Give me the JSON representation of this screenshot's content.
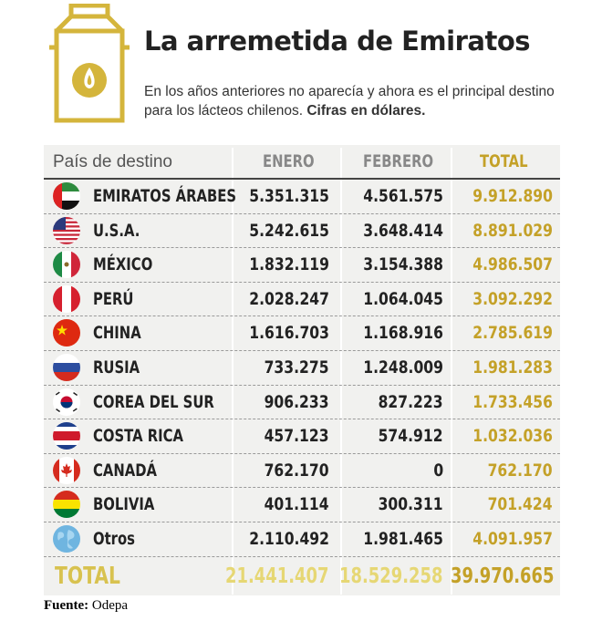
{
  "header": {
    "title": "La arremetida de Emiratos",
    "subtitle": "En los años anteriores no aparecía y ahora es el principal destino para los lácteos chilenos.",
    "subtitle_bold": "Cifras en dólares."
  },
  "table": {
    "col_country": "País de destino",
    "col_enero": "ENERO",
    "col_febrero": "FEBRERO",
    "col_total": "TOTAL"
  },
  "rows": [
    {
      "country": "EMIRATOS ÁRABES",
      "enero": "5.351.315",
      "febrero": "4.561.575",
      "total": "9.912.890",
      "flag_icon": "uae-flag-icon"
    },
    {
      "country": "U.S.A.",
      "enero": "5.242.615",
      "febrero": "3.648.414",
      "total": "8.891.029",
      "flag_icon": "usa-flag-icon"
    },
    {
      "country": "MÉXICO",
      "enero": "1.832.119",
      "febrero": "3.154.388",
      "total": "4.986.507",
      "flag_icon": "mexico-flag-icon"
    },
    {
      "country": "PERÚ",
      "enero": "2.028.247",
      "febrero": "1.064.045",
      "total": "3.092.292",
      "flag_icon": "peru-flag-icon"
    },
    {
      "country": "CHINA",
      "enero": "1.616.703",
      "febrero": "1.168.916",
      "total": "2.785.619",
      "flag_icon": "china-flag-icon"
    },
    {
      "country": "RUSIA",
      "enero": "733.275",
      "febrero": "1.248.009",
      "total": "1.981.283",
      "flag_icon": "russia-flag-icon"
    },
    {
      "country": "COREA DEL SUR",
      "enero": "906.233",
      "febrero": "827.223",
      "total": "1.733.456",
      "flag_icon": "south-korea-flag-icon"
    },
    {
      "country": "COSTA RICA",
      "enero": "457.123",
      "febrero": "574.912",
      "total": "1.032.036",
      "flag_icon": "costa-rica-flag-icon"
    },
    {
      "country": "CANADÁ",
      "enero": "762.170",
      "febrero": "0",
      "total": "762.170",
      "flag_icon": "canada-flag-icon"
    },
    {
      "country": "BOLIVIA",
      "enero": "401.114",
      "febrero": "300.311",
      "total": "701.424",
      "flag_icon": "bolivia-flag-icon"
    },
    {
      "country": "Otros",
      "enero": "2.110.492",
      "febrero": "1.981.465",
      "total": "4.091.957",
      "flag_icon": "globe-icon"
    }
  ],
  "totals": {
    "label": "TOTAL",
    "enero": "21.441.407",
    "febrero": "18.529.258",
    "total": "39.970.665"
  },
  "source": {
    "label": "Fuente:",
    "value": "Odepa"
  },
  "colors": {
    "accent_gold": "#c4a128",
    "accent_light_gold": "#e6d774",
    "table_bg": "#f1f1ef"
  },
  "chart_data": {
    "type": "table",
    "title": "La arremetida de Emiratos",
    "subtitle": "En los años anteriores no aparecía y ahora es el principal destino para los lácteos chilenos. Cifras en dólares.",
    "columns": [
      "País de destino",
      "ENERO",
      "FEBRERO",
      "TOTAL"
    ],
    "categories": [
      "EMIRATOS ÁRABES",
      "U.S.A.",
      "MÉXICO",
      "PERÚ",
      "CHINA",
      "RUSIA",
      "COREA DEL SUR",
      "COSTA RICA",
      "CANADÁ",
      "BOLIVIA",
      "Otros"
    ],
    "series": [
      {
        "name": "ENERO",
        "values": [
          5351315,
          5242615,
          1832119,
          2028247,
          1616703,
          733275,
          906233,
          457123,
          762170,
          401114,
          2110492
        ]
      },
      {
        "name": "FEBRERO",
        "values": [
          4561575,
          3648414,
          3154388,
          1064045,
          1168916,
          1248009,
          827223,
          574912,
          0,
          300311,
          1981465
        ]
      },
      {
        "name": "TOTAL",
        "values": [
          9912890,
          8891029,
          4986507,
          3092292,
          2785619,
          1981283,
          1733456,
          1032036,
          762170,
          701424,
          4091957
        ]
      }
    ],
    "totals": {
      "ENERO": 21441407,
      "FEBRERO": 18529258,
      "TOTAL": 39970665
    }
  }
}
